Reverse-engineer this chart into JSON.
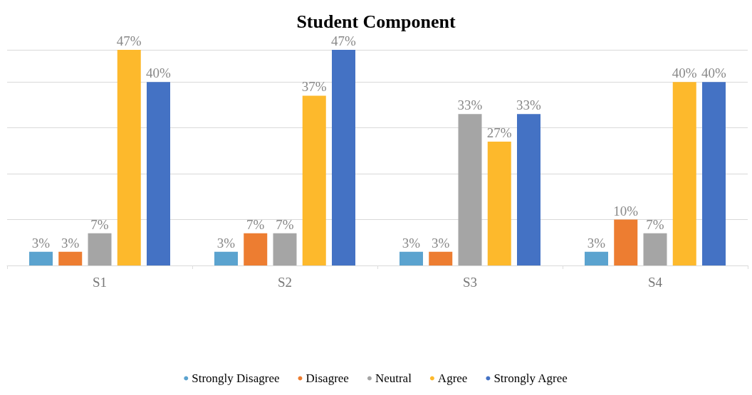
{
  "chart_data": {
    "type": "bar",
    "title": "Student Component",
    "categories": [
      "S1",
      "S2",
      "S3",
      "S4"
    ],
    "series": [
      {
        "name": "Strongly Disagree",
        "color": "#5ba3cf",
        "values": [
          3,
          3,
          3,
          3
        ],
        "value_labels": [
          "3%",
          "3%",
          "3%",
          "3%"
        ]
      },
      {
        "name": "Disagree",
        "color": "#ed7d31",
        "values": [
          3,
          7,
          3,
          10
        ],
        "value_labels": [
          "3%",
          "7%",
          "3%",
          "10%"
        ]
      },
      {
        "name": "Neutral",
        "color": "#a5a5a5",
        "values": [
          7,
          7,
          33,
          7
        ],
        "value_labels": [
          "7%",
          "7%",
          "33%",
          "7%"
        ]
      },
      {
        "name": "Agree",
        "color": "#fdb92c",
        "values": [
          47,
          37,
          27,
          40
        ],
        "value_labels": [
          "47%",
          "37%",
          "27%",
          "40%"
        ]
      },
      {
        "name": "Strongly Agree",
        "color": "#4472c4",
        "values": [
          40,
          47,
          33,
          40
        ],
        "value_labels": [
          "40%",
          "47%",
          "33%",
          "40%"
        ]
      }
    ],
    "grid": "y",
    "legend": "bottom"
  }
}
